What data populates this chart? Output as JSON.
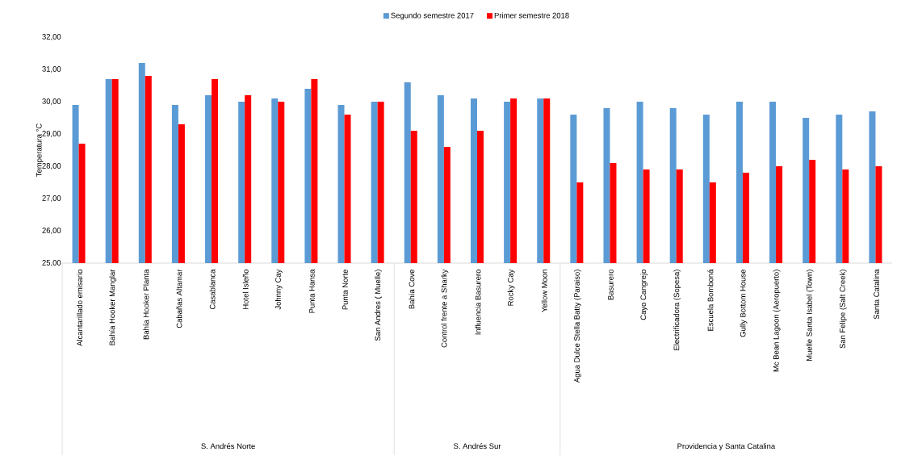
{
  "chart_data": {
    "type": "bar",
    "ylabel": "Temperatura °C",
    "categories": [
      "Alcantarillado emisario",
      "Bahía Hooker Manglar",
      "Bahía Hooker Planta",
      "Cabañas Altamar",
      "Casablanca",
      "Hotel Isleño",
      "Johnny Cay",
      "Punta Hansa",
      "Punta Norte",
      "San Andres ( Muelle)",
      "Bahía Cove",
      "Control frente a Sharky",
      "Influencia Basurero",
      "Rocky Cay",
      "Yellow Moon",
      "Agua Dulce Stella Batty (Paraiso)",
      "Basurero",
      "Cayo Cangrejo",
      "Electrificadora (Sopesa)",
      "Escuela Bomboná",
      "Gully Bottom House",
      "Mc Bean Lagoon (Aeropuerto)",
      "Muelle Santa Isabel (Town)",
      "San Felipe (Salt Creek)",
      "Santa Catalina"
    ],
    "series": [
      {
        "name": "Segundo semestre 2017",
        "color": "#5b9bd5",
        "values": [
          29.9,
          30.7,
          31.2,
          29.9,
          30.2,
          30.0,
          30.1,
          30.4,
          29.9,
          30.0,
          30.6,
          30.2,
          30.1,
          30.0,
          30.1,
          29.6,
          29.8,
          30.0,
          29.8,
          29.6,
          30.0,
          30.0,
          29.5,
          29.6,
          29.7
        ]
      },
      {
        "name": "Primer semestre 2018",
        "color": "#ff0000",
        "values": [
          28.7,
          30.7,
          30.8,
          29.3,
          30.7,
          30.2,
          30.0,
          30.7,
          29.6,
          30.0,
          29.1,
          28.6,
          29.1,
          30.1,
          30.1,
          27.5,
          28.1,
          27.9,
          27.9,
          27.5,
          27.8,
          28.0,
          28.2,
          27.9,
          28.0
        ]
      }
    ],
    "ylim": [
      25,
      32
    ],
    "yticks": [
      {
        "value": 25,
        "label": "25,00"
      },
      {
        "value": 26,
        "label": "26,00"
      },
      {
        "value": 27,
        "label": "27,00"
      },
      {
        "value": 28,
        "label": "28,00"
      },
      {
        "value": 29,
        "label": "29,00"
      },
      {
        "value": 30,
        "label": "30,00"
      },
      {
        "value": 31,
        "label": "31,00"
      },
      {
        "value": 32,
        "label": "32,00"
      }
    ],
    "legend": "top",
    "annotations": [
      "S. Andrés Norte",
      "S. Andrés Sur",
      "Providencia y Santa Catalina"
    ]
  }
}
